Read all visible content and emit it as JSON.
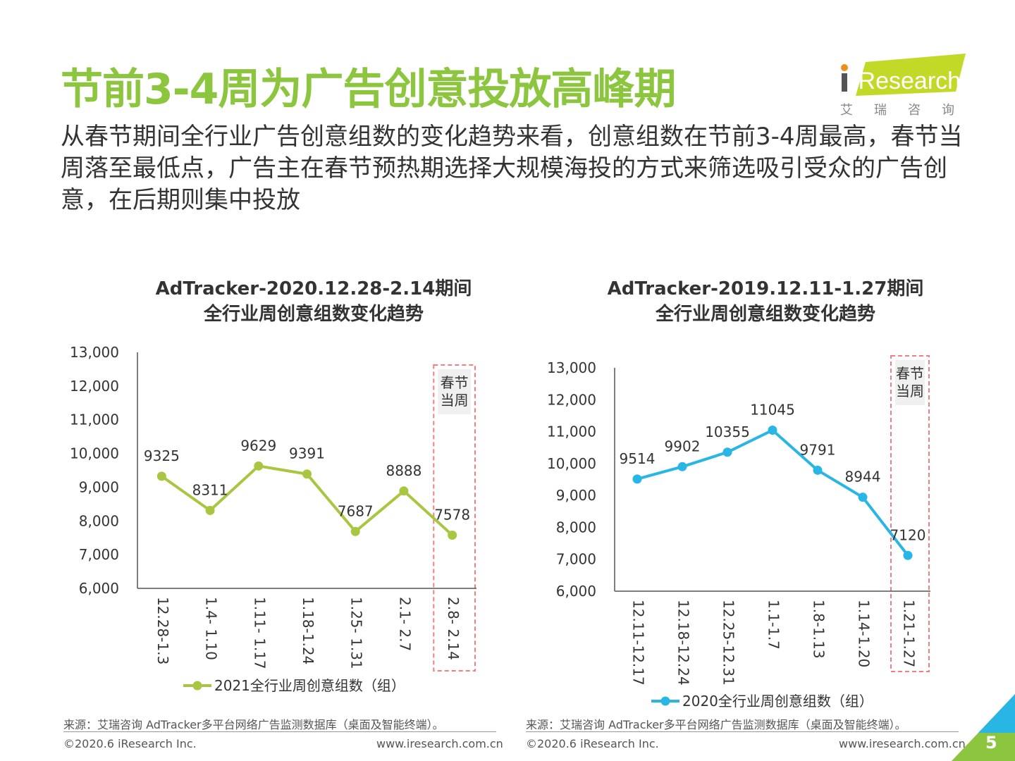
{
  "slide": {
    "title": "节前3-4周为广告创意投放高峰期",
    "subtitle": "从春节期间全行业广告创意组数的变化趋势来看，创意组数在节前3-4周最高，春节当周落至最低点，广告主在春节预热期选择大规模海投的方式来筛选吸引受众的广告创意，在后期则集中投放",
    "page_number": "5"
  },
  "logo": {
    "text": "iResearch",
    "sub": "艾瑞咨询"
  },
  "colors": {
    "title_green": "#8cc63f",
    "series_2021": "#a9c640",
    "series_2020": "#29b6e5",
    "highlight_border": "#f08080",
    "highlight_bg": "#f0f0f0"
  },
  "chart_data": [
    {
      "type": "line",
      "title": "AdTracker-2020.12.28-2.14期间 全行业周创意组数变化趋势",
      "title_lines": [
        "AdTracker-2020.12.28-2.14期间",
        "全行业周创意组数变化趋势"
      ],
      "categories": [
        "12.28-1.3",
        "1.4- 1.10",
        "1.11- 1.17",
        "1.18-1.24",
        "1.25- 1.31",
        "2.1- 2.7",
        "2.8- 2.14"
      ],
      "series": [
        {
          "name": "2021全行业周创意组数（组）",
          "values": [
            9325,
            8311,
            9629,
            9391,
            7687,
            8888,
            7578
          ]
        }
      ],
      "ylim": [
        6000,
        13000
      ],
      "yticks": [
        "13,000",
        "12,000",
        "11,000",
        "10,000",
        "9,000",
        "8,000",
        "7,000",
        "6,000"
      ],
      "highlight": {
        "label_line1": "春节",
        "label_line2": "当周",
        "category": "2.8- 2.14"
      },
      "legend": "bottom",
      "grid": false,
      "source": "来源：艾瑞咨询 AdTracker多平台网络广告监测数据库（桌面及智能终端）。"
    },
    {
      "type": "line",
      "title": "AdTracker-2019.12.11-1.27期间 全行业周创意组数变化趋势",
      "title_lines": [
        "AdTracker-2019.12.11-1.27期间",
        "全行业周创意组数变化趋势"
      ],
      "categories": [
        "12.11-12.17",
        "12.18-12.24",
        "12.25-12.31",
        "1.1-1.7",
        "1.8-1.13",
        "1.14-1.20",
        "1.21-1.27"
      ],
      "series": [
        {
          "name": "2020全行业周创意组数（组）",
          "values": [
            9514,
            9902,
            10355,
            11045,
            9791,
            8944,
            7120
          ]
        }
      ],
      "ylim": [
        6000,
        13000
      ],
      "yticks": [
        "13,000",
        "12,000",
        "11,000",
        "10,000",
        "9,000",
        "8,000",
        "7,000",
        "6,000"
      ],
      "highlight": {
        "label_line1": "春节",
        "label_line2": "当周",
        "category": "1.21-1.27"
      },
      "legend": "bottom",
      "grid": false,
      "source": "来源：艾瑞咨询 AdTracker多平台网络广告监测数据库（桌面及智能终端）。"
    }
  ],
  "footer": {
    "copyright": "©2020.6 iResearch Inc.",
    "website": "www.iresearch.com.cn"
  }
}
